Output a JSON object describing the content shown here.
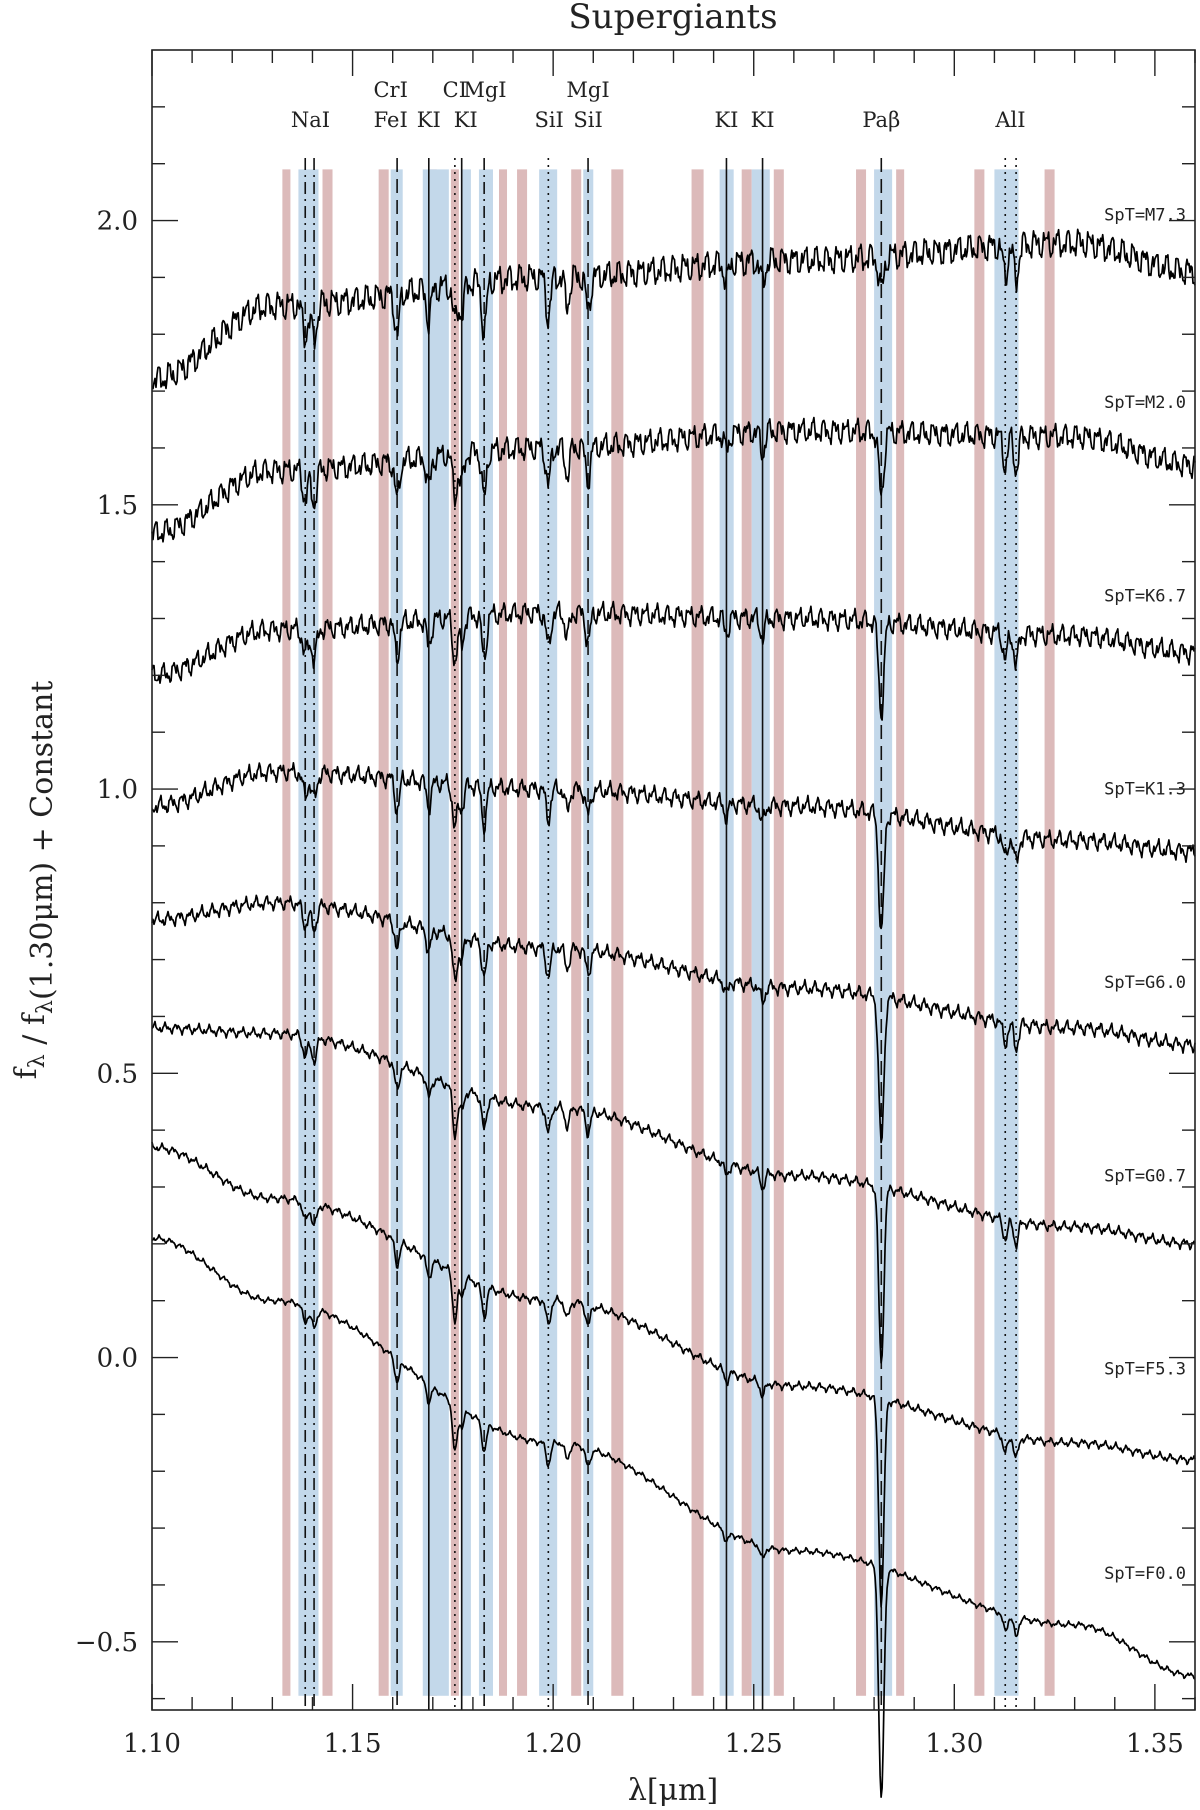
{
  "chart_data": {
    "type": "line",
    "title": "Supergiants",
    "xlabel": "λ[μm]",
    "ylabel": "f_λ / f_λ(1.30μm) + Constant",
    "xlim": [
      1.1,
      1.36
    ],
    "ylim": [
      -0.62,
      2.3
    ],
    "xticks": [
      {
        "value": 1.1,
        "label": "1.10"
      },
      {
        "value": 1.15,
        "label": "1.15"
      },
      {
        "value": 1.2,
        "label": "1.20"
      },
      {
        "value": 1.25,
        "label": "1.25"
      },
      {
        "value": 1.3,
        "label": "1.30"
      },
      {
        "value": 1.35,
        "label": "1.35"
      }
    ],
    "yticks": [
      {
        "value": -0.5,
        "label": "−0.5"
      },
      {
        "value": 0.0,
        "label": "0.0"
      },
      {
        "value": 0.5,
        "label": "0.5"
      },
      {
        "value": 1.0,
        "label": "1.0"
      },
      {
        "value": 1.5,
        "label": "1.5"
      },
      {
        "value": 2.0,
        "label": "2.0"
      }
    ],
    "grid": false,
    "bands": {
      "colors": {
        "continuum": "#dcbaba",
        "feature": "#c3d8ea"
      },
      "continuum": [
        [
          1.1325,
          1.1345
        ],
        [
          1.1425,
          1.145
        ],
        [
          1.1565,
          1.159
        ],
        [
          1.169,
          1.171
        ],
        [
          1.1745,
          1.1765
        ],
        [
          1.1865,
          1.1885
        ],
        [
          1.191,
          1.1935
        ],
        [
          1.2045,
          1.207
        ],
        [
          1.2145,
          1.2175
        ],
        [
          1.2345,
          1.2375
        ],
        [
          1.247,
          1.2495
        ],
        [
          1.255,
          1.2575
        ],
        [
          1.2755,
          1.278
        ],
        [
          1.2855,
          1.2875
        ],
        [
          1.305,
          1.3075
        ],
        [
          1.3225,
          1.325
        ]
      ],
      "feature": [
        [
          1.1365,
          1.1415
        ],
        [
          1.1595,
          1.1625
        ],
        [
          1.1675,
          1.174
        ],
        [
          1.177,
          1.1795
        ],
        [
          1.1815,
          1.185
        ],
        [
          1.1965,
          1.201
        ],
        [
          1.2075,
          1.21
        ],
        [
          1.2415,
          1.245
        ],
        [
          1.2495,
          1.254
        ],
        [
          1.28,
          1.2845
        ],
        [
          1.31,
          1.316
        ]
      ]
    },
    "lines": [
      {
        "x": 1.1382,
        "style": "dashdot"
      },
      {
        "x": 1.1404,
        "style": "dashdot"
      },
      {
        "x": 1.1611,
        "style": "dashed"
      },
      {
        "x": 1.169,
        "style": "solid"
      },
      {
        "x": 1.1772,
        "style": "solid"
      },
      {
        "x": 1.1755,
        "style": "dotted"
      },
      {
        "x": 1.1828,
        "style": "dashdot"
      },
      {
        "x": 1.1988,
        "style": "dotted"
      },
      {
        "x": 1.2087,
        "style": "dashed"
      },
      {
        "x": 1.2432,
        "style": "solid"
      },
      {
        "x": 1.2522,
        "style": "solid"
      },
      {
        "x": 1.2818,
        "style": "dashed"
      },
      {
        "x": 1.3127,
        "style": "dotted"
      },
      {
        "x": 1.3154,
        "style": "dotted"
      }
    ],
    "line_labels": [
      {
        "text": "NaI",
        "x": 1.1395,
        "row": 1
      },
      {
        "text": "CrI",
        "x": 1.1595,
        "row": 2
      },
      {
        "text": "FeI",
        "x": 1.1595,
        "row": 1
      },
      {
        "text": "KI",
        "x": 1.169,
        "row": 1
      },
      {
        "text": "CI",
        "x": 1.1755,
        "row": 2
      },
      {
        "text": "KI",
        "x": 1.1782,
        "row": 1
      },
      {
        "text": "MgI",
        "x": 1.183,
        "row": 2
      },
      {
        "text": "SiI",
        "x": 1.199,
        "row": 1
      },
      {
        "text": "MgI",
        "x": 1.2087,
        "row": 2
      },
      {
        "text": "SiI",
        "x": 1.2087,
        "row": 1
      },
      {
        "text": "KI",
        "x": 1.2432,
        "row": 1
      },
      {
        "text": "KI",
        "x": 1.2522,
        "row": 1
      },
      {
        "text": "Paβ",
        "x": 1.2818,
        "row": 1
      },
      {
        "text": "AlI",
        "x": 1.314,
        "row": 1
      }
    ],
    "series": [
      {
        "name": "SpT=M7.3",
        "label_y": 2.0,
        "anchors": [
          [
            1.1,
            1.72
          ],
          [
            1.13,
            1.85
          ],
          [
            1.2,
            1.9
          ],
          [
            1.26,
            1.93
          ],
          [
            1.33,
            1.96
          ],
          [
            1.36,
            1.91
          ]
        ],
        "noise": 0.03,
        "depth": 1.0,
        "neutral": 0.3
      },
      {
        "name": "SpT=M2.0",
        "label_y": 1.67,
        "anchors": [
          [
            1.1,
            1.45
          ],
          [
            1.13,
            1.56
          ],
          [
            1.2,
            1.6
          ],
          [
            1.26,
            1.63
          ],
          [
            1.33,
            1.62
          ],
          [
            1.36,
            1.57
          ]
        ],
        "noise": 0.026,
        "depth": 0.95,
        "neutral": 0.5
      },
      {
        "name": "SpT=K6.7",
        "label_y": 1.33,
        "anchors": [
          [
            1.1,
            1.2
          ],
          [
            1.13,
            1.28
          ],
          [
            1.2,
            1.31
          ],
          [
            1.26,
            1.3
          ],
          [
            1.33,
            1.27
          ],
          [
            1.36,
            1.24
          ]
        ],
        "noise": 0.022,
        "depth": 0.85,
        "neutral": 0.8
      },
      {
        "name": "SpT=K1.3",
        "label_y": 0.99,
        "anchors": [
          [
            1.1,
            0.97
          ],
          [
            1.13,
            1.03
          ],
          [
            1.2,
            1.0
          ],
          [
            1.26,
            0.97
          ],
          [
            1.33,
            0.91
          ],
          [
            1.36,
            0.89
          ]
        ],
        "noise": 0.018,
        "depth": 0.75,
        "neutral": 1.1
      },
      {
        "name": "SpT=G6.0",
        "label_y": 0.65,
        "anchors": [
          [
            1.1,
            0.77
          ],
          [
            1.13,
            0.8
          ],
          [
            1.2,
            0.72
          ],
          [
            1.26,
            0.65
          ],
          [
            1.33,
            0.58
          ],
          [
            1.36,
            0.55
          ]
        ],
        "noise": 0.014,
        "depth": 0.7,
        "neutral": 1.5
      },
      {
        "name": "SpT=G0.7",
        "label_y": 0.31,
        "anchors": [
          [
            1.1,
            0.58
          ],
          [
            1.13,
            0.57
          ],
          [
            1.2,
            0.44
          ],
          [
            1.26,
            0.32
          ],
          [
            1.33,
            0.23
          ],
          [
            1.36,
            0.2
          ]
        ],
        "noise": 0.01,
        "depth": 0.65,
        "neutral": 2.0
      },
      {
        "name": "SpT=F5.3",
        "label_y": -0.03,
        "anchors": [
          [
            1.1,
            0.37
          ],
          [
            1.13,
            0.28
          ],
          [
            1.2,
            0.1
          ],
          [
            1.26,
            -0.05
          ],
          [
            1.33,
            -0.15
          ],
          [
            1.36,
            -0.18
          ]
        ],
        "noise": 0.008,
        "depth": 0.6,
        "neutral": 2.6
      },
      {
        "name": "SpT=F0.0",
        "label_y": -0.39,
        "anchors": [
          [
            1.1,
            0.21
          ],
          [
            1.13,
            0.1
          ],
          [
            1.2,
            -0.15
          ],
          [
            1.26,
            -0.34
          ],
          [
            1.33,
            -0.47
          ],
          [
            1.36,
            -0.56
          ]
        ],
        "noise": 0.006,
        "depth": 0.55,
        "neutral": 3.2
      }
    ]
  }
}
